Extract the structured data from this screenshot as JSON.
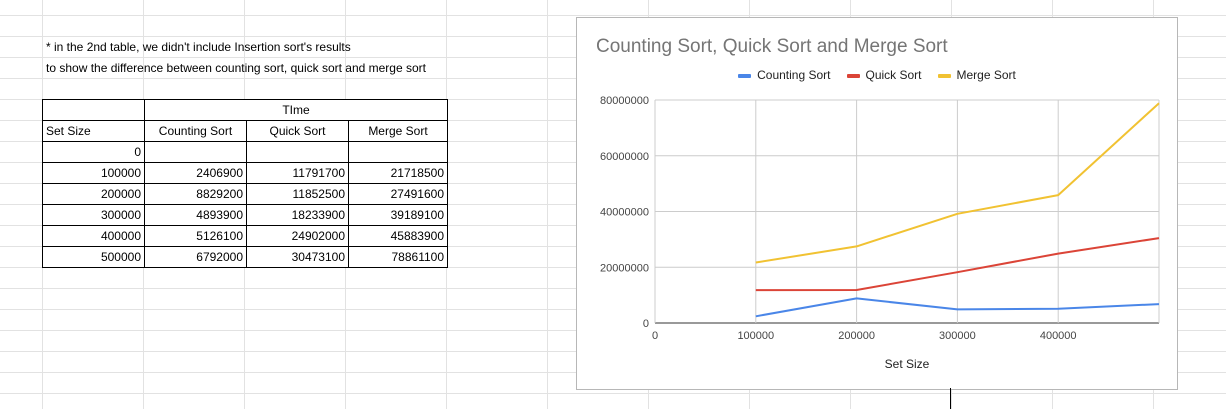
{
  "note": {
    "line1": "* in the 2nd table, we didn't include Insertion sort's results",
    "line2": "to show the difference between counting sort, quick sort and merge sort"
  },
  "table": {
    "group_header": "TIme",
    "headers": [
      "Set Size",
      "Counting Sort",
      "Quick Sort",
      "Merge Sort"
    ],
    "rows": [
      [
        "0",
        "",
        "",
        ""
      ],
      [
        "100000",
        "2406900",
        "11791700",
        "21718500"
      ],
      [
        "200000",
        "8829200",
        "11852500",
        "27491600"
      ],
      [
        "300000",
        "4893900",
        "18233900",
        "39189100"
      ],
      [
        "400000",
        "5126100",
        "24902000",
        "45883900"
      ],
      [
        "500000",
        "6792000",
        "30473100",
        "78861100"
      ]
    ]
  },
  "chart_data": {
    "type": "line",
    "title": "Counting Sort, Quick Sort and Merge Sort",
    "xlabel": "Set Size",
    "ylabel": "",
    "x": [
      100000,
      200000,
      300000,
      400000,
      500000
    ],
    "xlim": [
      0,
      500000
    ],
    "ylim": [
      0,
      80000000
    ],
    "x_ticks": [
      "0",
      "100000",
      "200000",
      "300000",
      "400000"
    ],
    "x_tick_values": [
      0,
      100000,
      200000,
      300000,
      400000
    ],
    "y_ticks": [
      "0",
      "20000000",
      "40000000",
      "60000000",
      "80000000"
    ],
    "y_tick_values": [
      0,
      20000000,
      40000000,
      60000000,
      80000000
    ],
    "grid": true,
    "legend": "top",
    "series": [
      {
        "name": "Counting Sort",
        "color": "#4a86e8",
        "values": [
          2406900,
          8829200,
          4893900,
          5126100,
          6792000
        ]
      },
      {
        "name": "Quick Sort",
        "color": "#db4437",
        "values": [
          11791700,
          11852500,
          18233900,
          24902000,
          30473100
        ]
      },
      {
        "name": "Merge Sort",
        "color": "#f1c232",
        "values": [
          21718500,
          27491600,
          39189100,
          45883900,
          78861100
        ]
      }
    ]
  }
}
